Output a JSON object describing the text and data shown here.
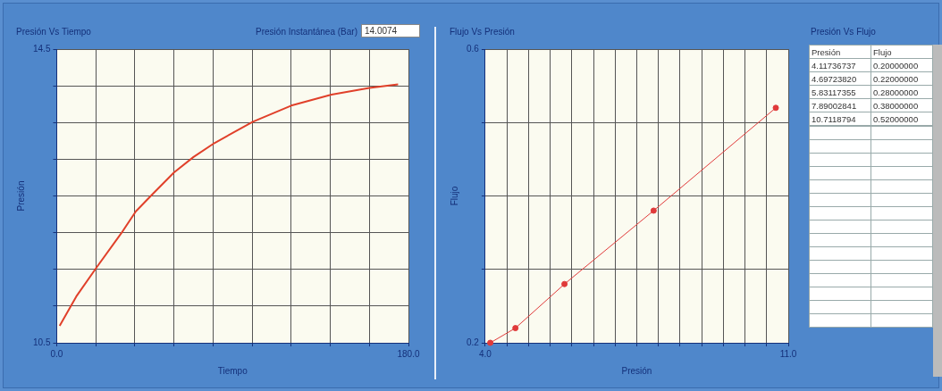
{
  "chart_data": [
    {
      "type": "line",
      "title": "Presión Vs Tiempo",
      "xlabel": "Tiempo",
      "ylabel": "Presión",
      "annotations": [
        "Presión Instantánea (Bar)",
        "14.0074"
      ],
      "x": [
        1.5,
        10,
        20.5,
        33,
        40.5,
        49.6,
        60,
        70,
        80.7,
        100.4,
        120,
        140.6,
        160,
        174.7
      ],
      "series": [
        {
          "color": "#e0402a",
          "values": [
            10.73,
            11.13,
            11.53,
            11.99,
            12.29,
            12.54,
            12.82,
            13.03,
            13.22,
            13.51,
            13.73,
            13.88,
            13.97,
            14.02
          ]
        }
      ],
      "xlim": [
        0,
        180
      ],
      "xticks": [
        {
          "value": 0,
          "label": "0.0"
        },
        {
          "value": 20,
          "label": null
        },
        {
          "value": 40,
          "label": null
        },
        {
          "value": 60,
          "label": null
        },
        {
          "value": 80,
          "label": null
        },
        {
          "value": 100,
          "label": null
        },
        {
          "value": 120,
          "label": null
        },
        {
          "value": 140,
          "label": null
        },
        {
          "value": 160,
          "label": null
        },
        {
          "value": 180,
          "label": "180.0"
        }
      ],
      "ylim": [
        10.5,
        14.5
      ],
      "yticks": [
        10.5,
        {
          "value": 11,
          "label": null
        },
        {
          "value": 11.5,
          "label": null
        },
        {
          "value": 12,
          "label": null
        },
        {
          "value": 12.5,
          "label": null
        },
        {
          "value": 13,
          "label": null
        },
        {
          "value": 13.5,
          "label": null
        },
        {
          "value": 14,
          "label": null
        },
        14.5
      ],
      "grid": true,
      "marker": "none",
      "line_style": "solid"
    },
    {
      "type": "line",
      "title": "Flujo Vs Presión",
      "xlabel": "Presión",
      "ylabel": "Flujo",
      "x": [
        4.11736737,
        4.6972382,
        5.83117355,
        7.89002841,
        10.7118794
      ],
      "series": [
        {
          "color": "#e03a3a",
          "values": [
            0.2,
            0.22,
            0.28,
            0.38,
            0.52
          ]
        }
      ],
      "xlim": [
        4,
        11
      ],
      "xticks": [
        {
          "value": 4,
          "label": "4.0"
        },
        {
          "value": 4.5,
          "label": null
        },
        {
          "value": 5,
          "label": null
        },
        {
          "value": 5.5,
          "label": null
        },
        {
          "value": 6,
          "label": null
        },
        {
          "value": 6.5,
          "label": null
        },
        {
          "value": 7,
          "label": null
        },
        {
          "value": 7.5,
          "label": null
        },
        {
          "value": 8,
          "label": null
        },
        {
          "value": 8.5,
          "label": null
        },
        {
          "value": 9,
          "label": null
        },
        {
          "value": 9.5,
          "label": null
        },
        {
          "value": 10,
          "label": null
        },
        {
          "value": 10.5,
          "label": null
        },
        {
          "value": 11,
          "label": "11.0"
        }
      ],
      "ylim": [
        0.2,
        0.6
      ],
      "yticks": [
        0.2,
        {
          "value": 0.3,
          "label": null
        },
        {
          "value": 0.4,
          "label": null
        },
        {
          "value": 0.5,
          "label": null
        },
        0.6
      ],
      "grid": true,
      "marker": "circle",
      "line_style": "solid"
    },
    {
      "type": "other",
      "title": "Presión Vs Flujo",
      "annotations": [
        "Presión",
        "Flujo",
        "4.11736737",
        "0.20000000",
        "4.69723820",
        "0.22000000",
        "5.83117355",
        "0.28000000",
        "7.89002841",
        "0.38000000",
        "10.7118794",
        "0.52000000"
      ]
    }
  ]
}
